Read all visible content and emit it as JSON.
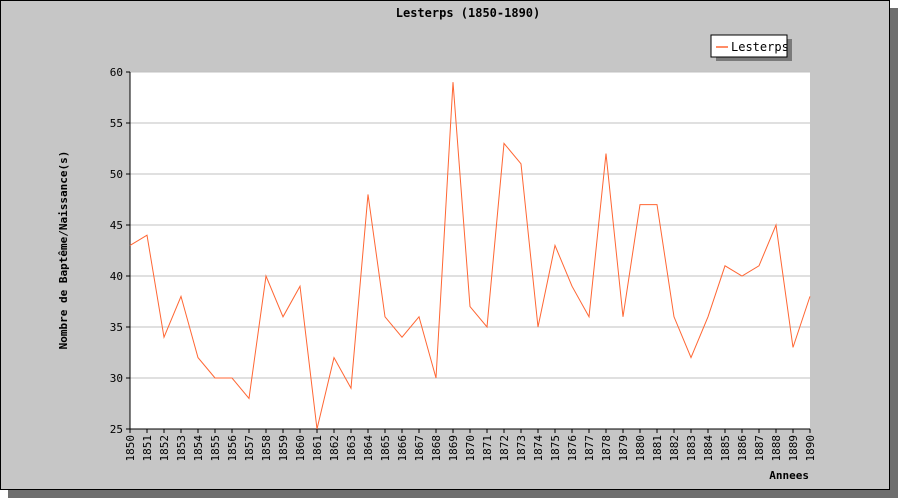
{
  "chart_data": {
    "type": "line",
    "title": "Lesterps (1850-1890)",
    "xlabel": "Annees",
    "ylabel": "Nombre de Baptême/Naissance(s)",
    "ylim": [
      25,
      60
    ],
    "yticks": [
      25,
      30,
      35,
      40,
      45,
      50,
      55,
      60
    ],
    "grid": true,
    "legend_position": "top-right",
    "line_color": "#ff6633",
    "categories": [
      "1850",
      "1851",
      "1852",
      "1853",
      "1854",
      "1855",
      "1856",
      "1857",
      "1858",
      "1859",
      "1860",
      "1861",
      "1862",
      "1863",
      "1864",
      "1865",
      "1866",
      "1867",
      "1868",
      "1869",
      "1870",
      "1871",
      "1872",
      "1873",
      "1874",
      "1875",
      "1876",
      "1877",
      "1878",
      "1879",
      "1880",
      "1881",
      "1882",
      "1883",
      "1884",
      "1885",
      "1886",
      "1887",
      "1888",
      "1889",
      "1890"
    ],
    "series": [
      {
        "name": "Lesterps",
        "values": [
          43,
          44,
          34,
          38,
          32,
          30,
          30,
          28,
          40,
          36,
          39,
          25,
          32,
          29,
          48,
          36,
          34,
          36,
          30,
          59,
          37,
          35,
          53,
          51,
          35,
          43,
          39,
          36,
          52,
          36,
          47,
          47,
          36,
          32,
          36,
          41,
          40,
          41,
          45,
          33,
          38
        ]
      }
    ]
  }
}
